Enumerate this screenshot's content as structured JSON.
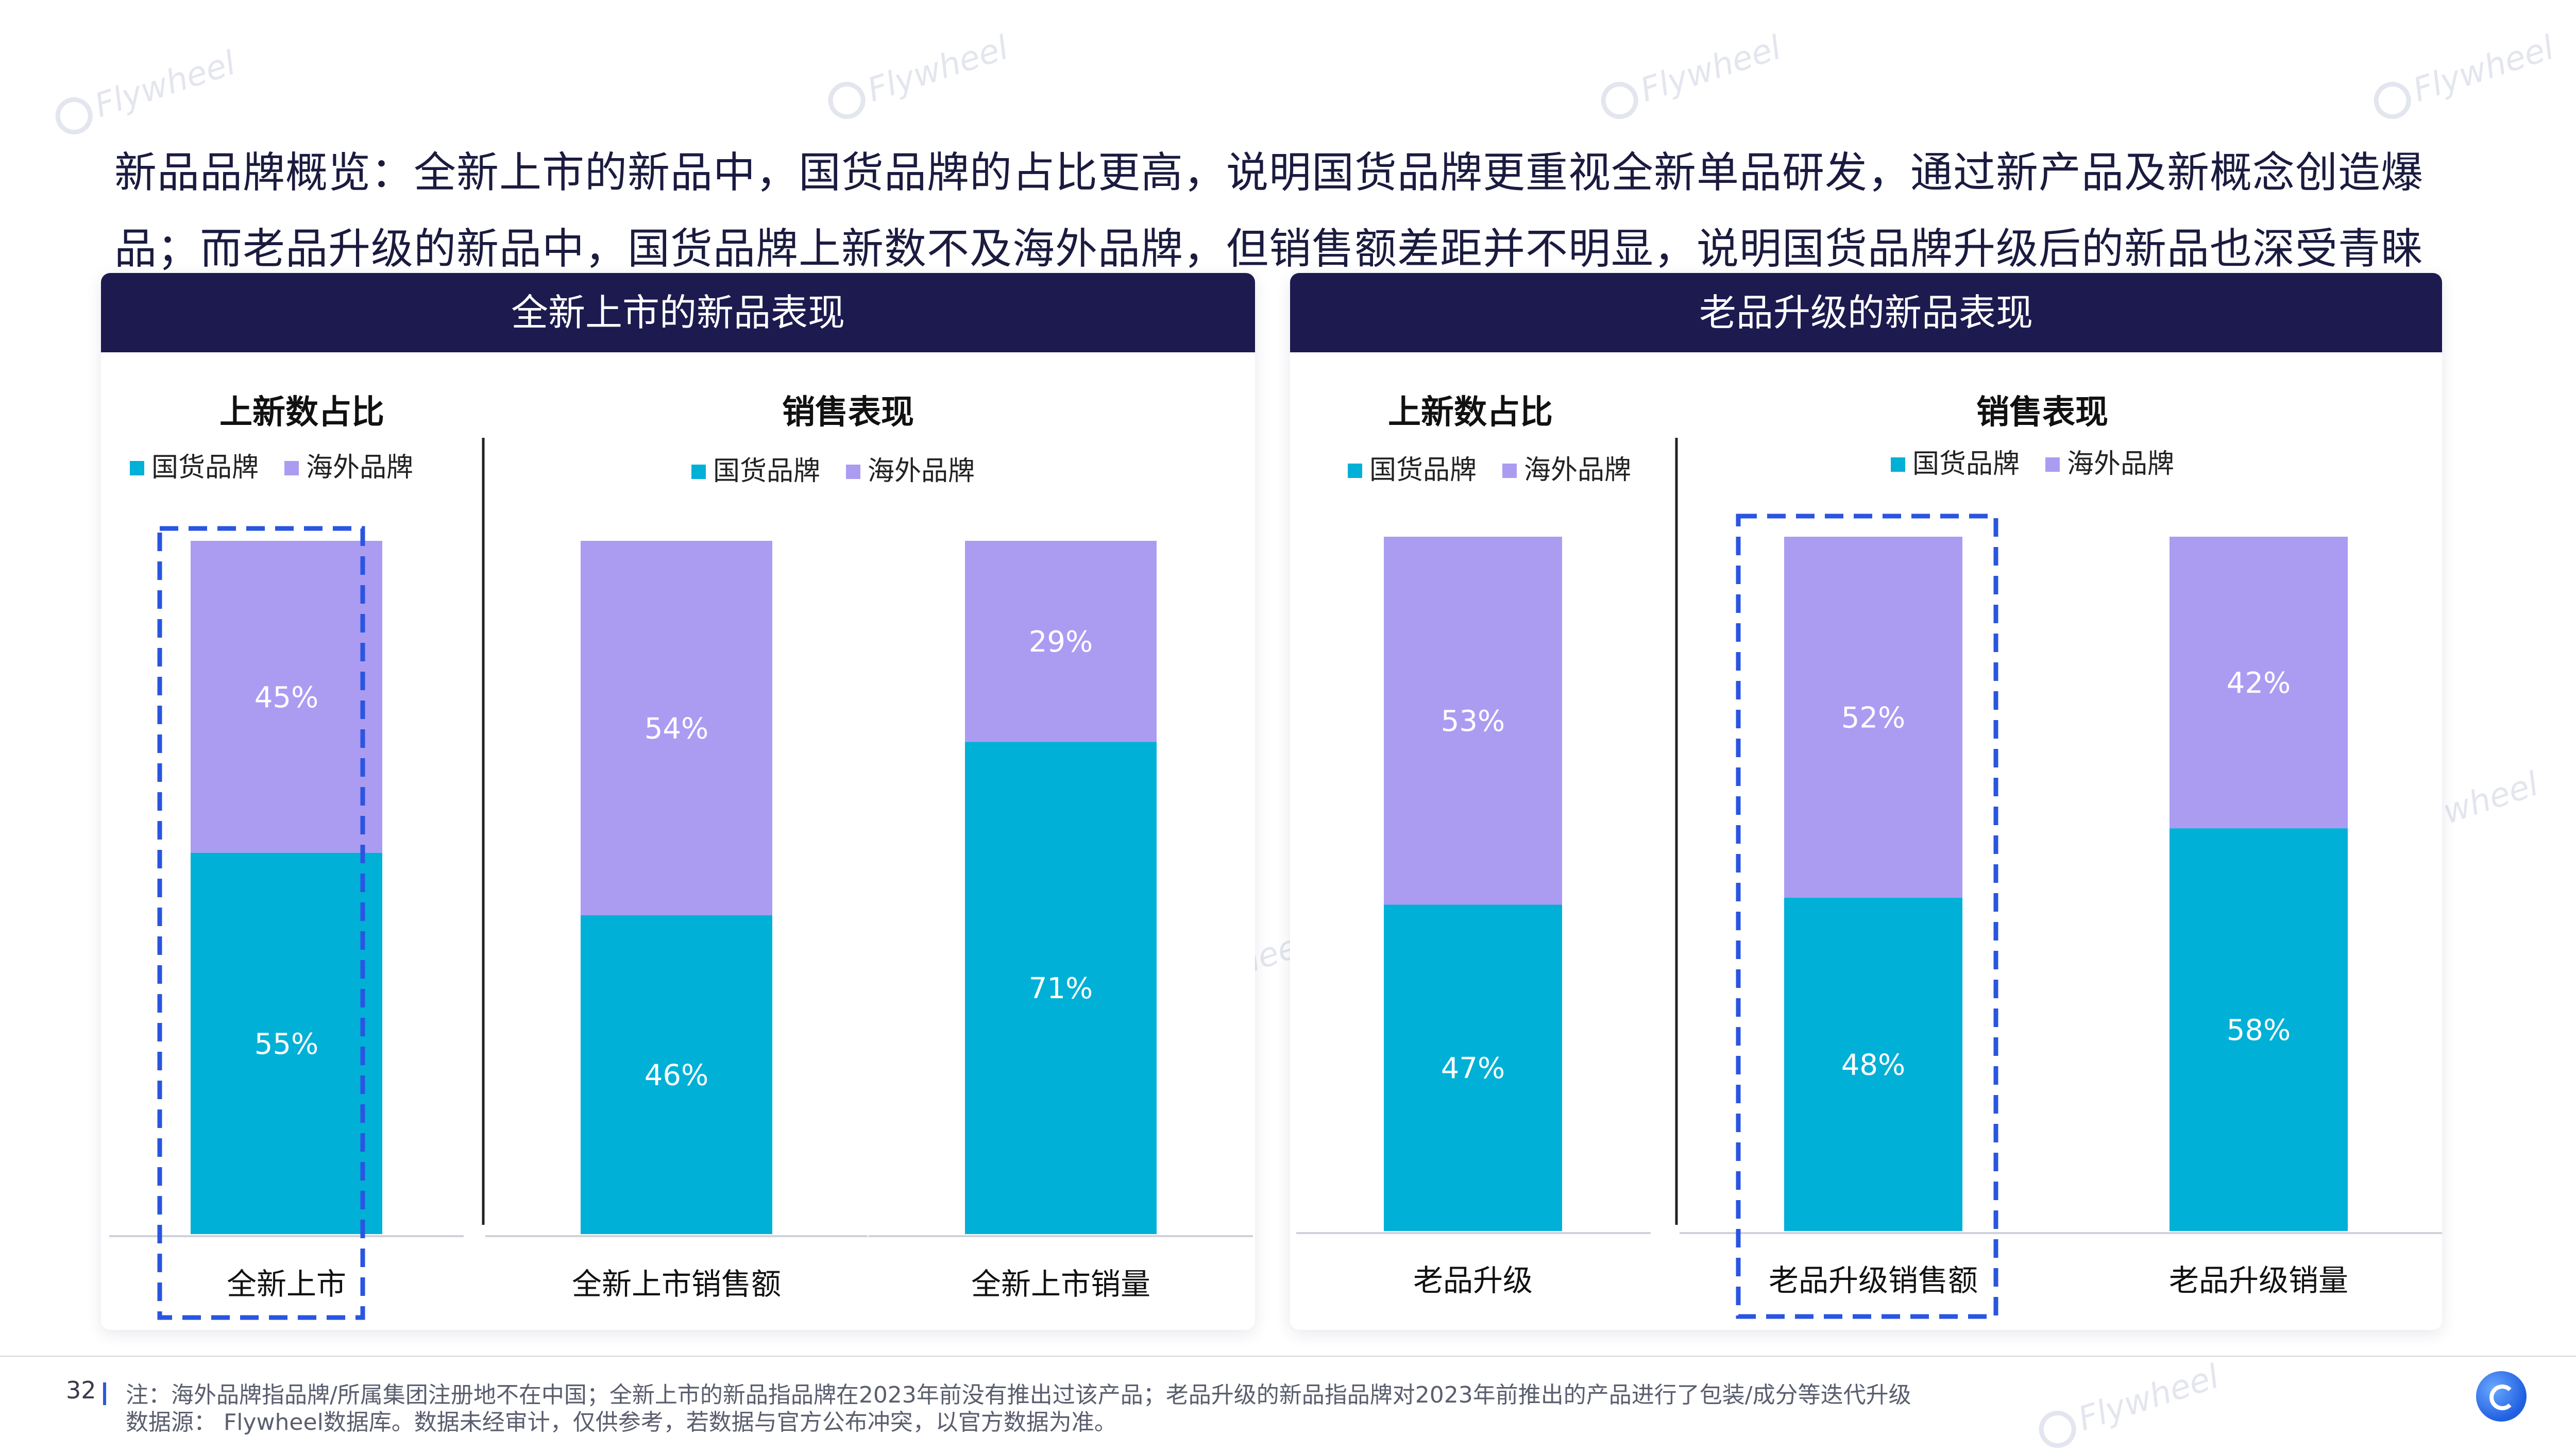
{
  "headline": "新品品牌概览：全新上市的新品中，国货品牌的占比更高，说明国货品牌更重视全新单品研发，通过新产品及新概念创造爆品；而老品升级的新品中，国货品牌上新数不及海外品牌，但销售额差距并不明显，说明国货品牌升级后的新品也深受青睐",
  "watermark": "Flywheel",
  "colors": {
    "domestic": "#00b0d6",
    "overseas": "#ab9cf2",
    "header": "#1c1a4f",
    "highlight": "#2a55e0"
  },
  "legend": {
    "domestic": "国货品牌",
    "overseas": "海外品牌"
  },
  "chart_data": [
    {
      "type": "bar",
      "stacked": true,
      "panel_title": "全新上市的新品表现",
      "groups": [
        {
          "title": "上新数占比",
          "categories": [
            "全新上市"
          ],
          "highlight": [
            true
          ]
        },
        {
          "title": "销售表现",
          "categories": [
            "全新上市销售额",
            "全新上市销量"
          ],
          "highlight": [
            false,
            false
          ]
        }
      ],
      "categories": [
        "全新上市",
        "全新上市销售额",
        "全新上市销量"
      ],
      "series": [
        {
          "name": "国货品牌",
          "values": [
            55,
            46,
            71
          ]
        },
        {
          "name": "海外品牌",
          "values": [
            45,
            54,
            29
          ]
        }
      ],
      "unit": "%",
      "ylim": [
        0,
        100
      ]
    },
    {
      "type": "bar",
      "stacked": true,
      "panel_title": "老品升级的新品表现",
      "groups": [
        {
          "title": "上新数占比",
          "categories": [
            "老品升级"
          ],
          "highlight": [
            false
          ]
        },
        {
          "title": "销售表现",
          "categories": [
            "老品升级销售额",
            "老品升级销量"
          ],
          "highlight": [
            true,
            false
          ]
        }
      ],
      "categories": [
        "老品升级",
        "老品升级销售额",
        "老品升级销量"
      ],
      "series": [
        {
          "name": "国货品牌",
          "values": [
            47,
            48,
            58
          ]
        },
        {
          "name": "海外品牌",
          "values": [
            53,
            52,
            42
          ]
        }
      ],
      "unit": "%",
      "ylim": [
        0,
        100
      ]
    }
  ],
  "footer": {
    "page": "32",
    "note": "注：海外品牌指品牌/所属集团注册地不在中国；全新上市的新品指品牌在2023年前没有推出过该产品；老品升级的新品指品牌对2023年前推出的产品进行了包装/成分等迭代升级",
    "source": "数据源： Flywheel数据库。数据未经审计，仅供参考，若数据与官方公布冲突，以官方数据为准。"
  }
}
